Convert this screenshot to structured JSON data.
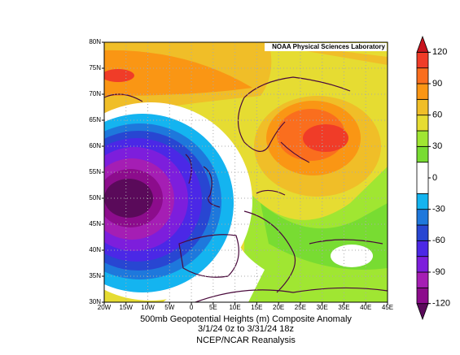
{
  "credit": "NOAA Physical Sciences Laboratory",
  "caption": [
    "500mb Geopotential Heights (m)   Composite Anomaly",
    "3/1/24 0z  to 3/31/24 18z",
    "NCEP/NCAR Reanalysis"
  ],
  "map": {
    "lonlim": [
      -20,
      45
    ],
    "latlim": [
      30,
      80
    ],
    "lonticks": [
      {
        "value": -20,
        "label": "20W"
      },
      {
        "value": -15,
        "label": "15W"
      },
      {
        "value": -10,
        "label": "10W"
      },
      {
        "value": -5,
        "label": "5W"
      },
      0,
      {
        "value": 5,
        "label": "5E"
      },
      {
        "value": 10,
        "label": "10E"
      },
      {
        "value": 15,
        "label": "15E"
      },
      {
        "value": 20,
        "label": "20E"
      },
      {
        "value": 25,
        "label": "25E"
      },
      {
        "value": 30,
        "label": "30E"
      },
      {
        "value": 35,
        "label": "35E"
      },
      {
        "value": 40,
        "label": "40E"
      },
      {
        "value": 45,
        "label": "45E"
      }
    ],
    "latticks": [
      {
        "value": 80,
        "label": "80N"
      },
      {
        "value": 75,
        "label": "75N"
      },
      {
        "value": 70,
        "label": "70N"
      },
      {
        "value": 65,
        "label": "65N"
      },
      {
        "value": 60,
        "label": "60N"
      },
      {
        "value": 55,
        "label": "55N"
      },
      {
        "value": 50,
        "label": "50N"
      },
      {
        "value": 45,
        "label": "45N"
      },
      {
        "value": 40,
        "label": "40N"
      },
      {
        "value": 35,
        "label": "35N"
      },
      {
        "value": 30,
        "label": "30N"
      }
    ],
    "grid": true
  },
  "colorbar": {
    "ticks": [
      120,
      90,
      60,
      30,
      0,
      -30,
      -60,
      -90,
      -120
    ],
    "bounds": [
      -135,
      -120,
      -105,
      -90,
      -75,
      -60,
      -45,
      -30,
      -15,
      15,
      30,
      45,
      60,
      75,
      90,
      105,
      120,
      135
    ],
    "colors": [
      "#5a0a5a",
      "#8c0c8c",
      "#a51eb4",
      "#7d1edc",
      "#4b28e6",
      "#2846d2",
      "#1e78dc",
      "#14b4f0",
      "#ffffff",
      "#78dc32",
      "#a0e632",
      "#e6dc32",
      "#f0be28",
      "#fa9614",
      "#fa6e1e",
      "#f03c28",
      "#c8141e"
    ]
  }
}
